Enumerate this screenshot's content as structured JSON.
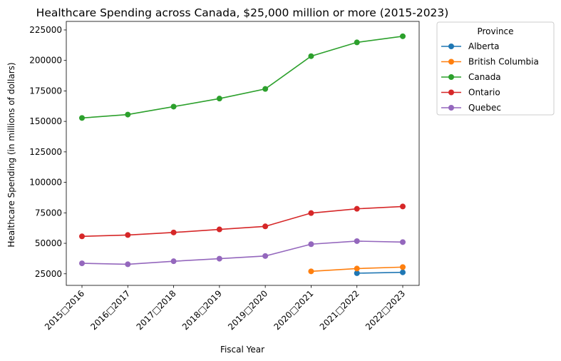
{
  "chart_data": {
    "type": "line",
    "title": "Healthcare Spending across Canada, $25,000 million or more (2015-2023)",
    "xlabel": "Fiscal Year",
    "ylabel": "Healthcare Spending (in millions of dollars)",
    "categories": [
      "2015□2016",
      "2016□2017",
      "2017□2018",
      "2018□2019",
      "2019□2020",
      "2020□2021",
      "2021□2022",
      "2022□2023"
    ],
    "ylim": [
      15500,
      232000
    ],
    "yticks": [
      25000,
      50000,
      75000,
      100000,
      125000,
      150000,
      175000,
      200000,
      225000
    ],
    "grid": false,
    "legend": {
      "title": "Province",
      "placement": "outside-top-right"
    },
    "series": [
      {
        "name": "Alberta",
        "color": "#1f77b4",
        "values": [
          null,
          null,
          null,
          null,
          null,
          null,
          25500,
          26200
        ]
      },
      {
        "name": "British Columbia",
        "color": "#ff7f0e",
        "values": [
          null,
          null,
          null,
          null,
          null,
          27000,
          29300,
          30500
        ]
      },
      {
        "name": "Canada",
        "color": "#2ca02c",
        "values": [
          152800,
          155600,
          162100,
          168700,
          176600,
          203500,
          214800,
          219800
        ]
      },
      {
        "name": "Ontario",
        "color": "#d62728",
        "values": [
          55700,
          56800,
          58900,
          61400,
          63900,
          74800,
          78300,
          80200
        ]
      },
      {
        "name": "Quebec",
        "color": "#9467bd",
        "values": [
          33600,
          32800,
          35300,
          37400,
          39600,
          49300,
          51800,
          51000
        ]
      }
    ]
  }
}
